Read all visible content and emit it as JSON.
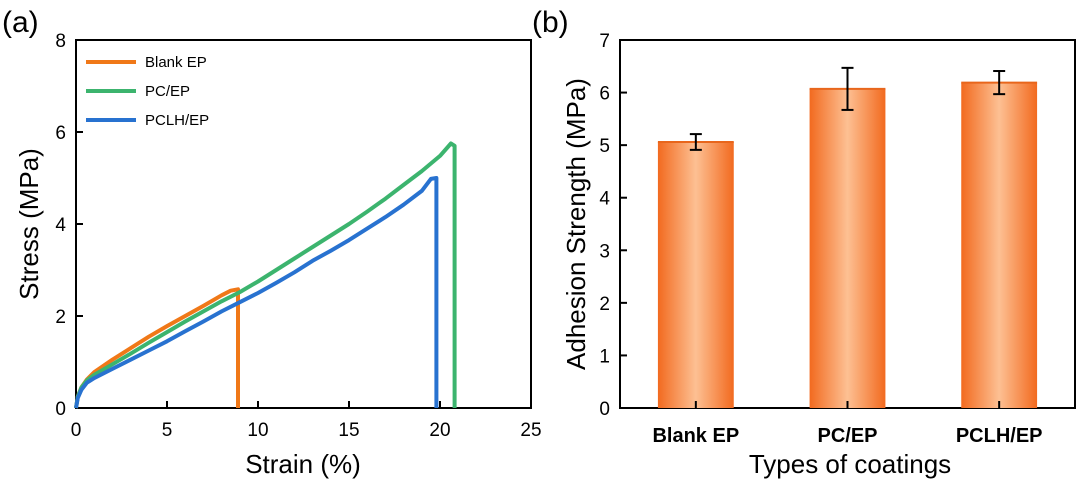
{
  "chart_data": [
    {
      "panel": "(a)",
      "type": "line",
      "xlabel": "Strain (%)",
      "ylabel": "Stress (MPa)",
      "xlim": [
        0,
        25
      ],
      "ylim": [
        0,
        8
      ],
      "xticks": [
        0,
        5,
        10,
        15,
        20,
        25
      ],
      "yticks": [
        0,
        2,
        4,
        6,
        8
      ],
      "legend_position": "top-left",
      "series": [
        {
          "name": "Blank EP",
          "color": "#f07818",
          "points": [
            [
              0,
              0
            ],
            [
              0.1,
              0.25
            ],
            [
              0.3,
              0.45
            ],
            [
              0.6,
              0.62
            ],
            [
              1,
              0.78
            ],
            [
              2,
              1.05
            ],
            [
              3,
              1.3
            ],
            [
              4,
              1.55
            ],
            [
              5,
              1.78
            ],
            [
              6,
              2.0
            ],
            [
              7,
              2.22
            ],
            [
              8,
              2.45
            ],
            [
              8.5,
              2.55
            ],
            [
              8.9,
              2.58
            ],
            [
              8.9,
              0
            ]
          ]
        },
        {
          "name": "PC/EP",
          "color": "#3cb46e",
          "points": [
            [
              0,
              0
            ],
            [
              0.1,
              0.25
            ],
            [
              0.3,
              0.45
            ],
            [
              0.6,
              0.6
            ],
            [
              1,
              0.72
            ],
            [
              2,
              0.95
            ],
            [
              3,
              1.18
            ],
            [
              4,
              1.42
            ],
            [
              5,
              1.65
            ],
            [
              6,
              1.88
            ],
            [
              7,
              2.1
            ],
            [
              8,
              2.32
            ],
            [
              9,
              2.52
            ],
            [
              10,
              2.75
            ],
            [
              11,
              3.0
            ],
            [
              12,
              3.25
            ],
            [
              13,
              3.5
            ],
            [
              14,
              3.75
            ],
            [
              15,
              4.0
            ],
            [
              16,
              4.27
            ],
            [
              17,
              4.55
            ],
            [
              18,
              4.85
            ],
            [
              19,
              5.15
            ],
            [
              20,
              5.48
            ],
            [
              20.6,
              5.75
            ],
            [
              20.8,
              5.7
            ],
            [
              20.8,
              0
            ]
          ]
        },
        {
          "name": "PCLH/EP",
          "color": "#2872d0",
          "points": [
            [
              0,
              0
            ],
            [
              0.1,
              0.22
            ],
            [
              0.3,
              0.4
            ],
            [
              0.6,
              0.55
            ],
            [
              1,
              0.65
            ],
            [
              2,
              0.85
            ],
            [
              3,
              1.05
            ],
            [
              4,
              1.25
            ],
            [
              5,
              1.45
            ],
            [
              6,
              1.67
            ],
            [
              7,
              1.88
            ],
            [
              8,
              2.1
            ],
            [
              9,
              2.3
            ],
            [
              10,
              2.5
            ],
            [
              11,
              2.72
            ],
            [
              12,
              2.95
            ],
            [
              13,
              3.2
            ],
            [
              14,
              3.42
            ],
            [
              15,
              3.65
            ],
            [
              16,
              3.9
            ],
            [
              17,
              4.15
            ],
            [
              18,
              4.42
            ],
            [
              19,
              4.72
            ],
            [
              19.5,
              4.98
            ],
            [
              19.8,
              5.0
            ],
            [
              19.8,
              0
            ]
          ]
        }
      ]
    },
    {
      "panel": "(b)",
      "type": "bar",
      "xlabel": "Types of coatings",
      "ylabel": "Adhesion Strength (MPa)",
      "ylim": [
        0,
        7
      ],
      "yticks": [
        0,
        1,
        2,
        3,
        4,
        5,
        6,
        7
      ],
      "categories": [
        "Blank EP",
        "PC/EP",
        "PCLH/EP"
      ],
      "values": [
        5.06,
        6.07,
        6.19
      ],
      "errors": [
        0.15,
        0.4,
        0.22
      ],
      "bar_color": "#f07830"
    }
  ]
}
